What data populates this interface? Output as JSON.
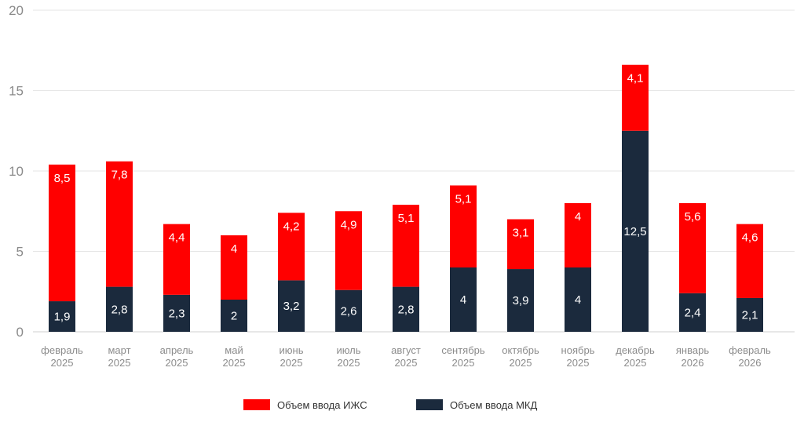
{
  "chart_data": {
    "type": "bar",
    "stacked": true,
    "title": "",
    "xlabel": "",
    "ylabel": "",
    "ylim": [
      0,
      20
    ],
    "yticks": [
      0,
      5,
      10,
      15,
      20
    ],
    "grid": true,
    "legend_position": "bottom-center",
    "categories": [
      [
        "февраль",
        "2025"
      ],
      [
        "март",
        "2025"
      ],
      [
        "апрель",
        "2025"
      ],
      [
        "май",
        "2025"
      ],
      [
        "июнь",
        "2025"
      ],
      [
        "июль",
        "2025"
      ],
      [
        "август",
        "2025"
      ],
      [
        "сентябрь",
        "2025"
      ],
      [
        "октябрь",
        "2025"
      ],
      [
        "ноябрь",
        "2025"
      ],
      [
        "декабрь",
        "2025"
      ],
      [
        "январь",
        "2026"
      ],
      [
        "февраль",
        "2026"
      ]
    ],
    "series": [
      {
        "name": "Объем ввода МКД",
        "color": "#1b2a3d",
        "values": [
          1.9,
          2.8,
          2.3,
          2,
          3.2,
          2.6,
          2.8,
          4,
          3.9,
          4,
          12.5,
          2.4,
          2.1
        ],
        "labels": [
          "1,9",
          "2,8",
          "2,3",
          "2",
          "3,2",
          "2,6",
          "2,8",
          "4",
          "3,9",
          "4",
          "12,5",
          "2,4",
          "2,1"
        ]
      },
      {
        "name": "Объем ввода ИЖС",
        "color": "#ff0000",
        "values": [
          8.5,
          7.8,
          4.4,
          4,
          4.2,
          4.9,
          5.1,
          5.1,
          3.1,
          4,
          4.1,
          5.6,
          4.6
        ],
        "labels": [
          "8,5",
          "7,8",
          "4,4",
          "4",
          "4,2",
          "4,9",
          "5,1",
          "5,1",
          "3,1",
          "4",
          "4,1",
          "5,6",
          "4,6"
        ]
      }
    ],
    "legend": [
      {
        "name": "Объем ввода ИЖС",
        "color": "#ff0000"
      },
      {
        "name": "Объем ввода МКД",
        "color": "#1b2a3d"
      }
    ]
  }
}
